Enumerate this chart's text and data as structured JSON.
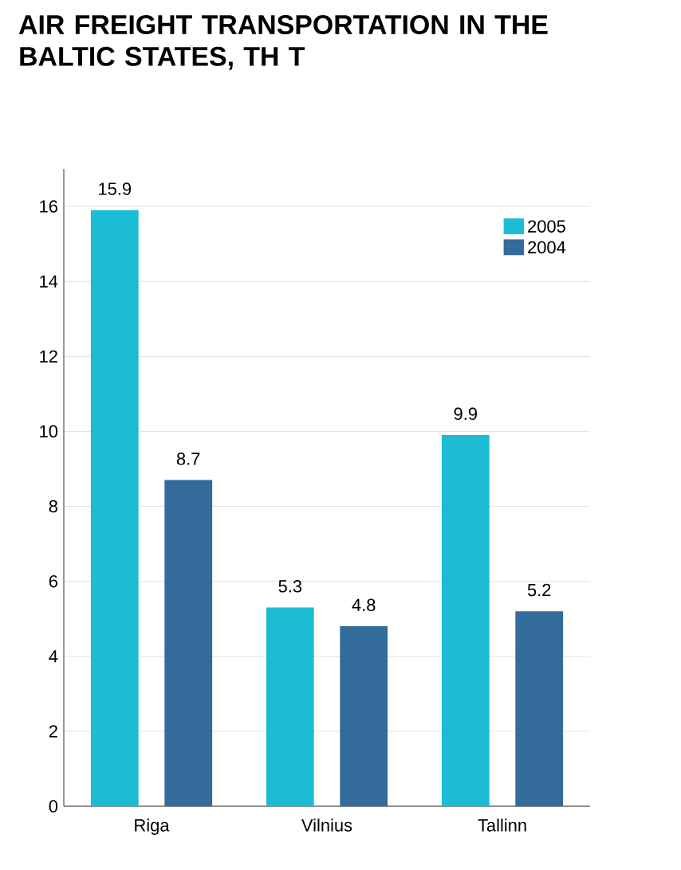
{
  "chart_data": {
    "type": "bar",
    "title": "AIR FREIGHT TRANSPORTATION IN THE BALTIC STATES, TH T",
    "categories": [
      "Riga",
      "Vilnius",
      "Tallinn"
    ],
    "series": [
      {
        "name": "2005",
        "color": "#1bbcd4",
        "values": [
          15.9,
          5.3,
          9.9
        ]
      },
      {
        "name": "2004",
        "color": "#336b9b",
        "values": [
          8.7,
          4.8,
          5.2
        ]
      }
    ],
    "ylim": [
      0,
      17
    ],
    "yticks": [
      0,
      2,
      4,
      6,
      8,
      10,
      12,
      14,
      16
    ],
    "grid": "y",
    "legend": "top right",
    "data_labels": true
  }
}
